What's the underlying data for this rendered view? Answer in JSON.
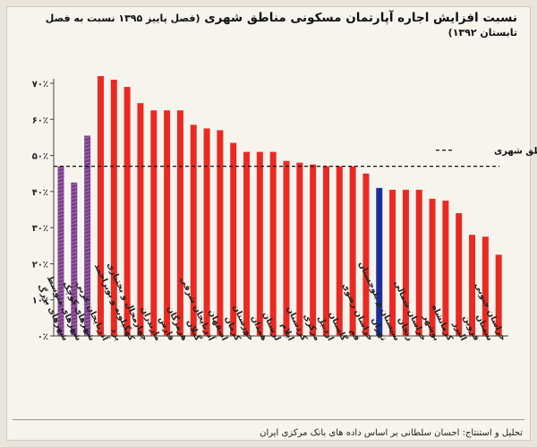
{
  "chart_data": {
    "type": "bar",
    "title": "نسبت افزایش اجاره آپارتمان مسکونی مناطق شهری",
    "subtitle": "(فصل پاییز ۱۳۹۵ نسبت به فصل تابستان ۱۳۹۲)",
    "ylim": [
      0,
      70
    ],
    "yticks": [
      "۰٪",
      "۱۰٪",
      "۲۰٪",
      "۳۰٪",
      "۴۰٪",
      "۵۰٪",
      "۶۰٪",
      "۷۰٪"
    ],
    "grid": false,
    "reference_line": {
      "value": 47,
      "label": "کل مناطق شهری"
    },
    "categories": [
      "شهرهای بزرگ",
      "شهرهای متوسط",
      "شهرهای کوچک",
      "آذربایجان غربی",
      "یزد",
      "کهگیلویه و بویراحمد",
      "چهارمحال و بختیاری",
      "مازندران",
      "فارس",
      "هرمزگان",
      "گیلان",
      "آذربایجان شرقی",
      "اصفهان",
      "کرمان",
      "خوزستان",
      "همدان",
      "لرستان",
      "ایلام",
      "کردستان",
      "مرکزی",
      "اردبیل",
      "گلستان",
      "قم",
      "خراسان رضوی",
      "تهران",
      "سیستان و بلوچستان",
      "زنجان",
      "خراسان شمالی",
      "بوشهر",
      "کرمانشاه",
      "البرز",
      "قزوین",
      "سمنان",
      "خراسان جنوبی"
    ],
    "values": [
      47,
      42.5,
      55.5,
      72,
      71,
      69,
      64.5,
      62.5,
      62.5,
      62.5,
      58.5,
      57.5,
      57,
      53.5,
      51,
      51,
      51,
      48.5,
      48,
      47.5,
      47,
      47,
      47,
      45,
      41,
      40.5,
      40.5,
      40.5,
      38,
      37.5,
      34,
      28,
      27.5,
      22.5
    ],
    "colors": {
      "size_group": "#7b3f8c",
      "province": "#ea2a22",
      "tehran": "#1d2f9a",
      "reference": "#111111"
    }
  },
  "footer": "تحلیل و استنتاج: احسان سلطانی بر اساس داده های بانک مرکزی ایران"
}
